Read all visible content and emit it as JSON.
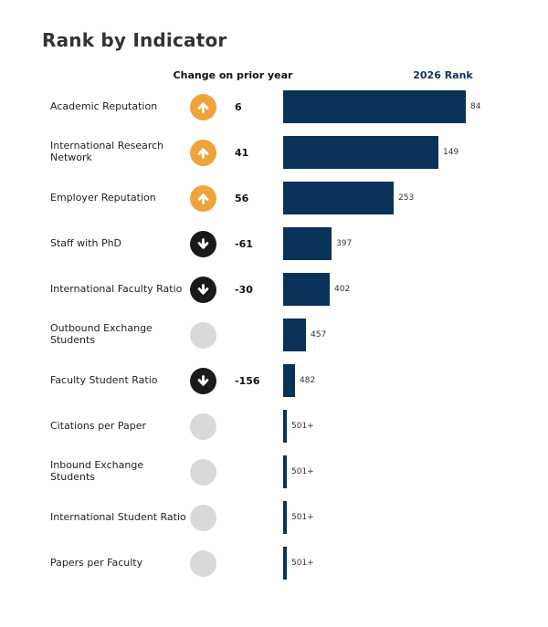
{
  "page": {
    "title": "Rank by Indicator"
  },
  "columns": {
    "change_header": "Change on prior year",
    "rank_header": "2026 Rank"
  },
  "colors": {
    "bar_navy": "#0a3158",
    "rank_header_navy": "#12355b",
    "up_orange": "#efa43b",
    "down_black": "#1a1a1a",
    "no_change_gray": "#d9d9d9",
    "title_gray": "#333333"
  },
  "chart_data": {
    "type": "bar",
    "orientation": "horizontal",
    "title": "Rank by Indicator",
    "legend": false,
    "grid": false,
    "value_axis_note": "lower rank number = longer bar; ranks of 501+ drawn as minimal sliver",
    "categories": [
      "Academic Reputation",
      "International Research Network",
      "Employer Reputation",
      "Staff with PhD",
      "International Faculty Ratio",
      "Outbound Exchange Students",
      "Faculty Student Ratio",
      "Citations per Paper",
      "Inbound Exchange Students",
      "International Student Ratio",
      "Papers per Faculty"
    ],
    "series": [
      {
        "name": "Change on prior year",
        "values": [
          6,
          41,
          56,
          -61,
          -30,
          null,
          -156,
          null,
          null,
          null,
          null
        ]
      },
      {
        "name": "2026 Rank",
        "values": [
          "84",
          "149",
          "253",
          "397",
          "402",
          "457",
          "482",
          "501+",
          "501+",
          "501+",
          "501+"
        ]
      }
    ],
    "rows": [
      {
        "label": "Academic Reputation",
        "direction": "up",
        "change": "6",
        "rank": "84",
        "rank_numeric": 84
      },
      {
        "label": "International Research Network",
        "direction": "up",
        "change": "41",
        "rank": "149",
        "rank_numeric": 149
      },
      {
        "label": "Employer Reputation",
        "direction": "up",
        "change": "56",
        "rank": "253",
        "rank_numeric": 253
      },
      {
        "label": "Staff with PhD",
        "direction": "down",
        "change": "-61",
        "rank": "397",
        "rank_numeric": 397
      },
      {
        "label": "International Faculty Ratio",
        "direction": "down",
        "change": "-30",
        "rank": "402",
        "rank_numeric": 402
      },
      {
        "label": "Outbound Exchange Students",
        "direction": "none",
        "change": "",
        "rank": "457",
        "rank_numeric": 457
      },
      {
        "label": "Faculty Student Ratio",
        "direction": "down",
        "change": "-156",
        "rank": "482",
        "rank_numeric": 482
      },
      {
        "label": "Citations per Paper",
        "direction": "none",
        "change": "",
        "rank": "501+",
        "rank_numeric": null
      },
      {
        "label": "Inbound Exchange Students",
        "direction": "none",
        "change": "",
        "rank": "501+",
        "rank_numeric": null
      },
      {
        "label": "International Student Ratio",
        "direction": "none",
        "change": "",
        "rank": "501+",
        "rank_numeric": null
      },
      {
        "label": "Papers per Faculty",
        "direction": "none",
        "change": "",
        "rank": "501+",
        "rank_numeric": null
      }
    ]
  }
}
